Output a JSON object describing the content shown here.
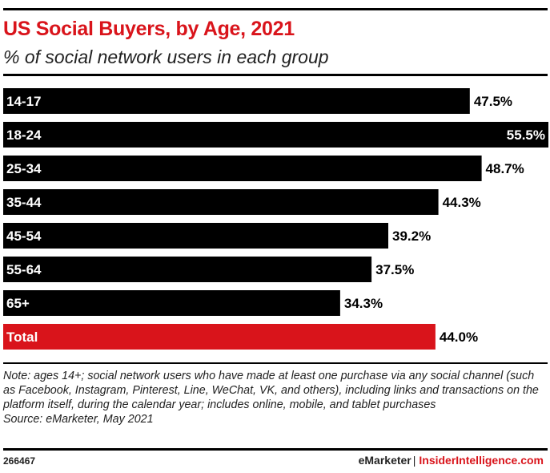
{
  "header": {
    "title": "US Social Buyers, by Age, 2021",
    "subtitle": "% of social network users in each group"
  },
  "chart_data": {
    "type": "bar",
    "orientation": "horizontal",
    "title": "US Social Buyers, by Age, 2021",
    "subtitle": "% of social network users in each group",
    "categories": [
      "14-17",
      "18-24",
      "25-34",
      "35-44",
      "45-54",
      "55-64",
      "65+",
      "Total"
    ],
    "values": [
      47.5,
      55.5,
      48.7,
      44.3,
      39.2,
      37.5,
      34.3,
      44.0
    ],
    "value_labels": [
      "47.5%",
      "55.5%",
      "48.7%",
      "44.3%",
      "39.2%",
      "37.5%",
      "34.3%",
      "44.0%"
    ],
    "unit": "%",
    "xlim": [
      0,
      55.5
    ],
    "grid": false,
    "legend": "none",
    "colors": {
      "bar": "#000000",
      "highlight": "#d9141b",
      "highlight_category": "Total",
      "category_label": "#ffffff",
      "value_label": "#000000"
    }
  },
  "notes": {
    "note": "Note: ages 14+; social network users who have made at least one purchase via any social channel (such as Facebook, Instagram, Pinterest, Line, WeChat, VK, and others), including links and transactions on the platform itself, during the calendar year; includes online, mobile, and tablet purchases",
    "source": "Source: eMarketer, May 2021"
  },
  "footer": {
    "chart_id": "266467",
    "brand": "eMarketer",
    "separator": "|",
    "site": "InsiderIntelligence.com"
  }
}
